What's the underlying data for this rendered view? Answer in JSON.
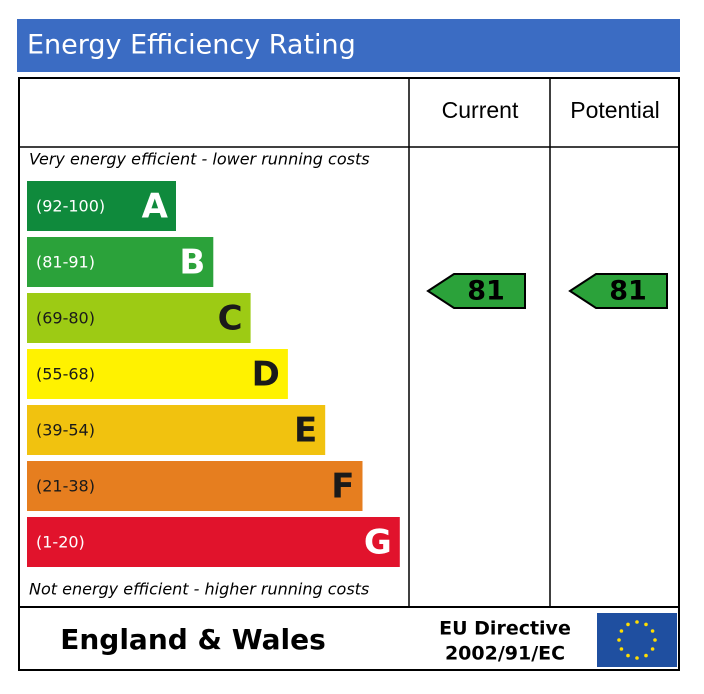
{
  "title": "Energy Efficiency Rating",
  "columns": [
    "Current",
    "Potential"
  ],
  "top_note": "Very energy efficient - lower running costs",
  "bottom_note": "Not energy efficient - higher running costs",
  "bands": [
    {
      "range": "(92-100)",
      "letter": "A",
      "color": "#0f8a3c",
      "text_color": "#ffffff"
    },
    {
      "range": "(81-91)",
      "letter": "B",
      "color": "#2ba23a",
      "text_color": "#ffffff"
    },
    {
      "range": "(69-80)",
      "letter": "C",
      "color": "#9dcb14",
      "text_color": "#1a1a1a"
    },
    {
      "range": "(55-68)",
      "letter": "D",
      "color": "#fff200",
      "text_color": "#1a1a1a"
    },
    {
      "range": "(39-54)",
      "letter": "E",
      "color": "#f1c20f",
      "text_color": "#1a1a1a"
    },
    {
      "range": "(21-38)",
      "letter": "F",
      "color": "#e67e1f",
      "text_color": "#1a1a1a"
    },
    {
      "range": "(1-20)",
      "letter": "G",
      "color": "#e1132c",
      "text_color": "#ffffff"
    }
  ],
  "current": {
    "value": 81,
    "color": "#2ba23a"
  },
  "potential": {
    "value": 81,
    "color": "#2ba23a"
  },
  "footer": {
    "region": "England & Wales",
    "directive": [
      "EU Directive",
      "2002/91/EC"
    ]
  }
}
